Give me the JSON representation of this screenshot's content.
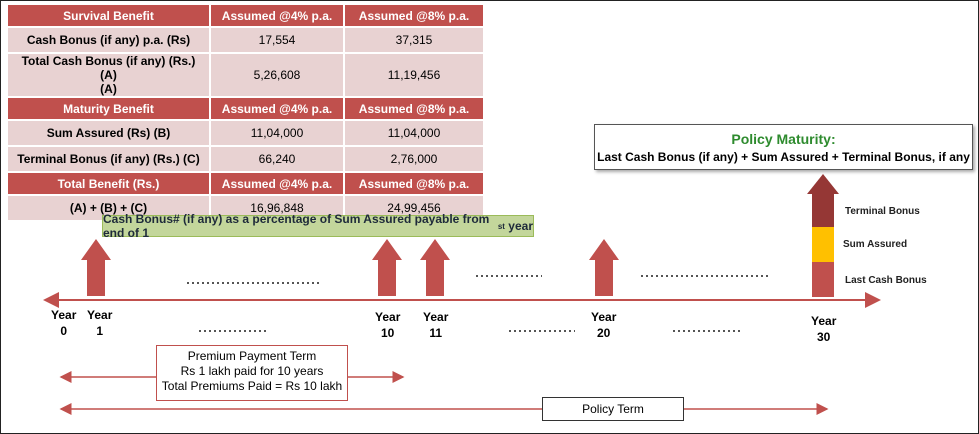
{
  "table": {
    "survival": {
      "header": [
        "Survival Benefit",
        "Assumed @4% p.a.",
        "Assumed @8% p.a."
      ],
      "rows": [
        [
          "Cash Bonus (if any) p.a. (Rs)",
          "17,554",
          "37,315"
        ],
        [
          "Total Cash Bonus (if any) (Rs.) (A)\n(A)",
          "5,26,608",
          "11,19,456"
        ]
      ]
    },
    "maturity": {
      "header": [
        "Maturity Benefit",
        "Assumed @4% p.a.",
        "Assumed @8% p.a."
      ],
      "rows": [
        [
          "Sum Assured (Rs) (B)",
          "11,04,000",
          "11,04,000"
        ],
        [
          "Terminal Bonus (if any) (Rs.)  (C)",
          "66,240",
          "2,76,000"
        ]
      ]
    },
    "total": {
      "header": [
        "Total Benefit (Rs.)",
        "Assumed @4% p.a.",
        "Assumed @8% p.a."
      ],
      "rows": [
        [
          "(A) + (B) + (C)",
          "16,96,848",
          "24,99,456"
        ]
      ]
    }
  },
  "cash_bonus_note": {
    "text": "Cash Bonus# (if any) as a percentage of Sum Assured payable from end of 1",
    "superscript": "st",
    "suffix": " year"
  },
  "policy_maturity": {
    "title": "Policy Maturity:",
    "formula": "Last Cash Bonus (if any) + Sum Assured + Terminal Bonus, if any"
  },
  "timeline": {
    "years": [
      {
        "label": "Year",
        "number": "0"
      },
      {
        "label": "Year",
        "number": "1"
      },
      {
        "label": "Year",
        "number": "10"
      },
      {
        "label": "Year",
        "number": "11"
      },
      {
        "label": "Year",
        "number": "20"
      },
      {
        "label": "Year",
        "number": "30"
      }
    ]
  },
  "maturity_bar": {
    "segments": [
      "Terminal Bonus",
      "Sum Assured",
      "Last Cash Bonus"
    ],
    "colors": {
      "terminal": "#953735",
      "sum_assured": "#ffc000",
      "last_cash": "#c0504d"
    }
  },
  "premium_payment_term": {
    "lines": [
      "Premium Payment Term",
      "Rs 1 lakh paid for 10 years",
      "Total Premiums Paid = Rs 10 lakh"
    ]
  },
  "policy_term": {
    "label": "Policy Term"
  },
  "colors": {
    "header_red": "#c0504d",
    "row_pink": "#e8d2d2",
    "note_green": "#c3d69b",
    "maturity_green": "#2e8b2e"
  }
}
